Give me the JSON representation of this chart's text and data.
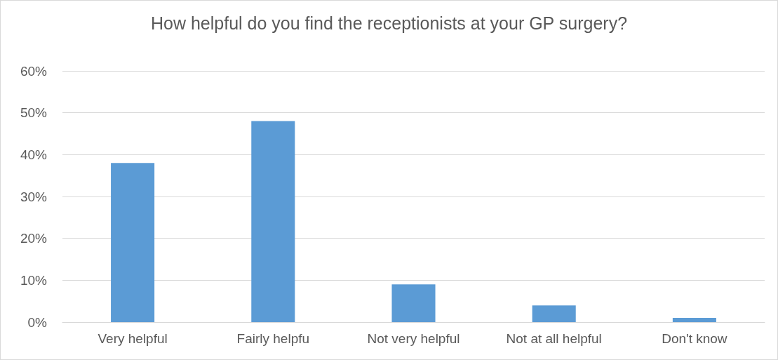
{
  "chart_data": {
    "type": "bar",
    "title": "How helpful do you find the receptionists at your GP surgery?",
    "categories": [
      "Very helpful",
      "Fairly helpfu",
      "Not very helpful",
      "Not at all helpful",
      "Don't know"
    ],
    "values": [
      38,
      48,
      9,
      4,
      1
    ],
    "color": "#5b9bd5",
    "ylim": [
      0,
      60
    ],
    "yticks": [
      {
        "value": 0,
        "label": "0%"
      },
      {
        "value": 10,
        "label": "10%"
      },
      {
        "value": 20,
        "label": "20%"
      },
      {
        "value": 30,
        "label": "30%"
      },
      {
        "value": 40,
        "label": "40%"
      },
      {
        "value": 50,
        "label": "50%"
      },
      {
        "value": 60,
        "label": "60%"
      }
    ],
    "grid": "y"
  }
}
